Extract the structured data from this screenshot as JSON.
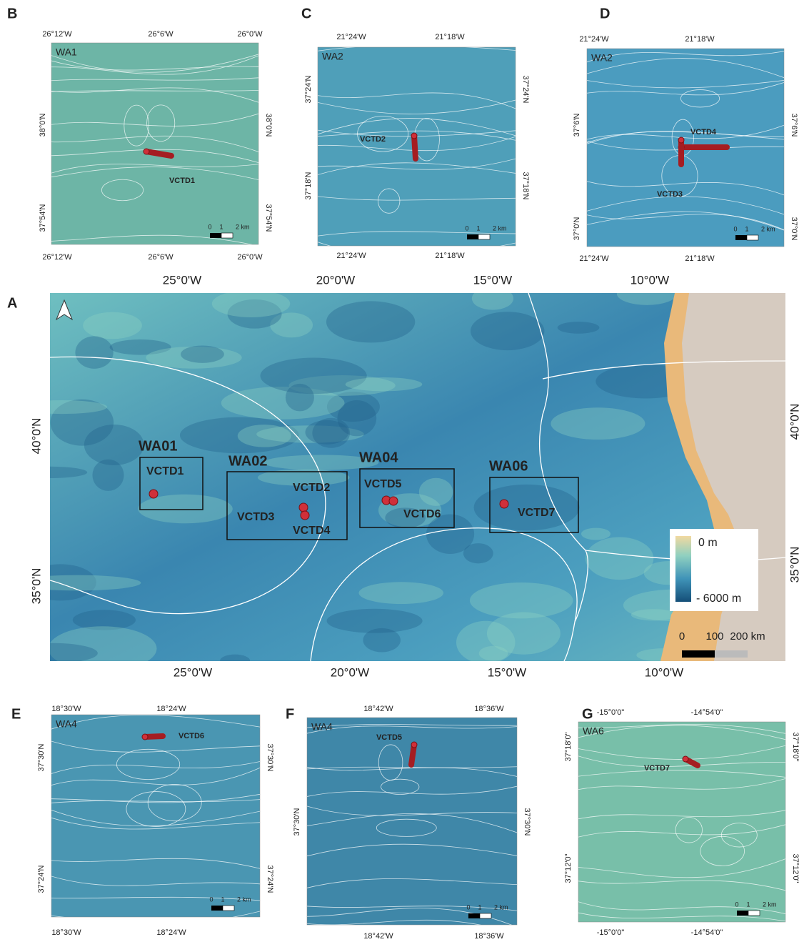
{
  "panels": [
    {
      "letter": "B",
      "area": "WA1",
      "top_ticks": [
        "26°12'W",
        "26°6'W",
        "26°0'W"
      ],
      "bottom_ticks": [
        "26°12'W",
        "26°6'W",
        "26°0'W"
      ],
      "left_ticks": [
        "38°0'N",
        "37°54'N"
      ],
      "right_ticks": [
        "38°0'N",
        "37°54'N"
      ],
      "stations": [
        "VCTD1"
      ],
      "scale": [
        "0",
        "1",
        "2 km"
      ]
    },
    {
      "letter": "C",
      "area": "WA2",
      "top_ticks": [
        "21°24'W",
        "21°18'W"
      ],
      "bottom_ticks": [
        "21°24'W",
        "21°18'W"
      ],
      "left_ticks": [
        "37°24'N",
        "37°18'N"
      ],
      "right_ticks": [
        "37°24'N",
        "37°18'N"
      ],
      "stations": [
        "VCTD2"
      ],
      "scale": [
        "0",
        "1",
        "2 km"
      ]
    },
    {
      "letter": "D",
      "area": "WA2",
      "top_ticks": [
        "21°24'W",
        "21°18'W"
      ],
      "bottom_ticks": [
        "21°24'W",
        "21°18'W"
      ],
      "left_ticks": [
        "37°6'N",
        "37°0'N"
      ],
      "right_ticks": [
        "37°6'N",
        "37°0'N"
      ],
      "stations": [
        "VCTD4",
        "VCTD3"
      ],
      "scale": [
        "0",
        "1",
        "2 km"
      ]
    },
    {
      "letter": "E",
      "area": "WA4",
      "top_ticks": [
        "18°30'W",
        "18°24'W"
      ],
      "bottom_ticks": [
        "18°30'W",
        "18°24'W"
      ],
      "left_ticks": [
        "37°30'N",
        "37°24'N"
      ],
      "right_ticks": [
        "37°30'N",
        "37°24'N"
      ],
      "stations": [
        "VCTD6"
      ],
      "scale": [
        "0",
        "1",
        "2 km"
      ]
    },
    {
      "letter": "F",
      "area": "WA4",
      "top_ticks": [
        "18°42'W",
        "18°36'W"
      ],
      "bottom_ticks": [
        "18°42'W",
        "18°36'W"
      ],
      "left_ticks": [
        "37°30'N"
      ],
      "right_ticks": [
        "37°30'N"
      ],
      "stations": [
        "VCTD5"
      ],
      "scale": [
        "0",
        "1",
        "2 km"
      ]
    },
    {
      "letter": "G",
      "area": "WA6",
      "top_ticks": [
        "-15°0'0\"",
        "-14°54'0\""
      ],
      "bottom_ticks": [
        "-15°0'0\"",
        "-14°54'0\""
      ],
      "left_ticks": [
        "37°18'0\"",
        "37°12'0\""
      ],
      "right_ticks": [
        "37°18'0\"",
        "37°12'0\""
      ],
      "stations": [
        "VCTD7"
      ],
      "scale": [
        "0",
        "1",
        "2 km"
      ]
    }
  ],
  "main": {
    "letter": "A",
    "top_ticks": [
      "25°0'W",
      "20°0'W",
      "15°0'W",
      "10°0'W"
    ],
    "bottom_ticks": [
      "25°0'W",
      "20°0'W",
      "15°0'W",
      "10°0'W"
    ],
    "left_ticks": [
      "40°0'N",
      "35°0'N"
    ],
    "right_ticks": [
      "40°0'N",
      "35°0'N"
    ],
    "boxes": [
      {
        "label": "WA01",
        "stations": [
          "VCTD1"
        ]
      },
      {
        "label": "WA02",
        "stations": [
          "VCTD2",
          "VCTD3",
          "VCTD4"
        ]
      },
      {
        "label": "WA04",
        "stations": [
          "VCTD5",
          "VCTD6"
        ]
      },
      {
        "label": "WA06",
        "stations": [
          "VCTD7"
        ]
      }
    ],
    "legend": [
      "0 m",
      "- 6000 m"
    ],
    "scale": [
      "0",
      "100",
      "200 km"
    ]
  }
}
